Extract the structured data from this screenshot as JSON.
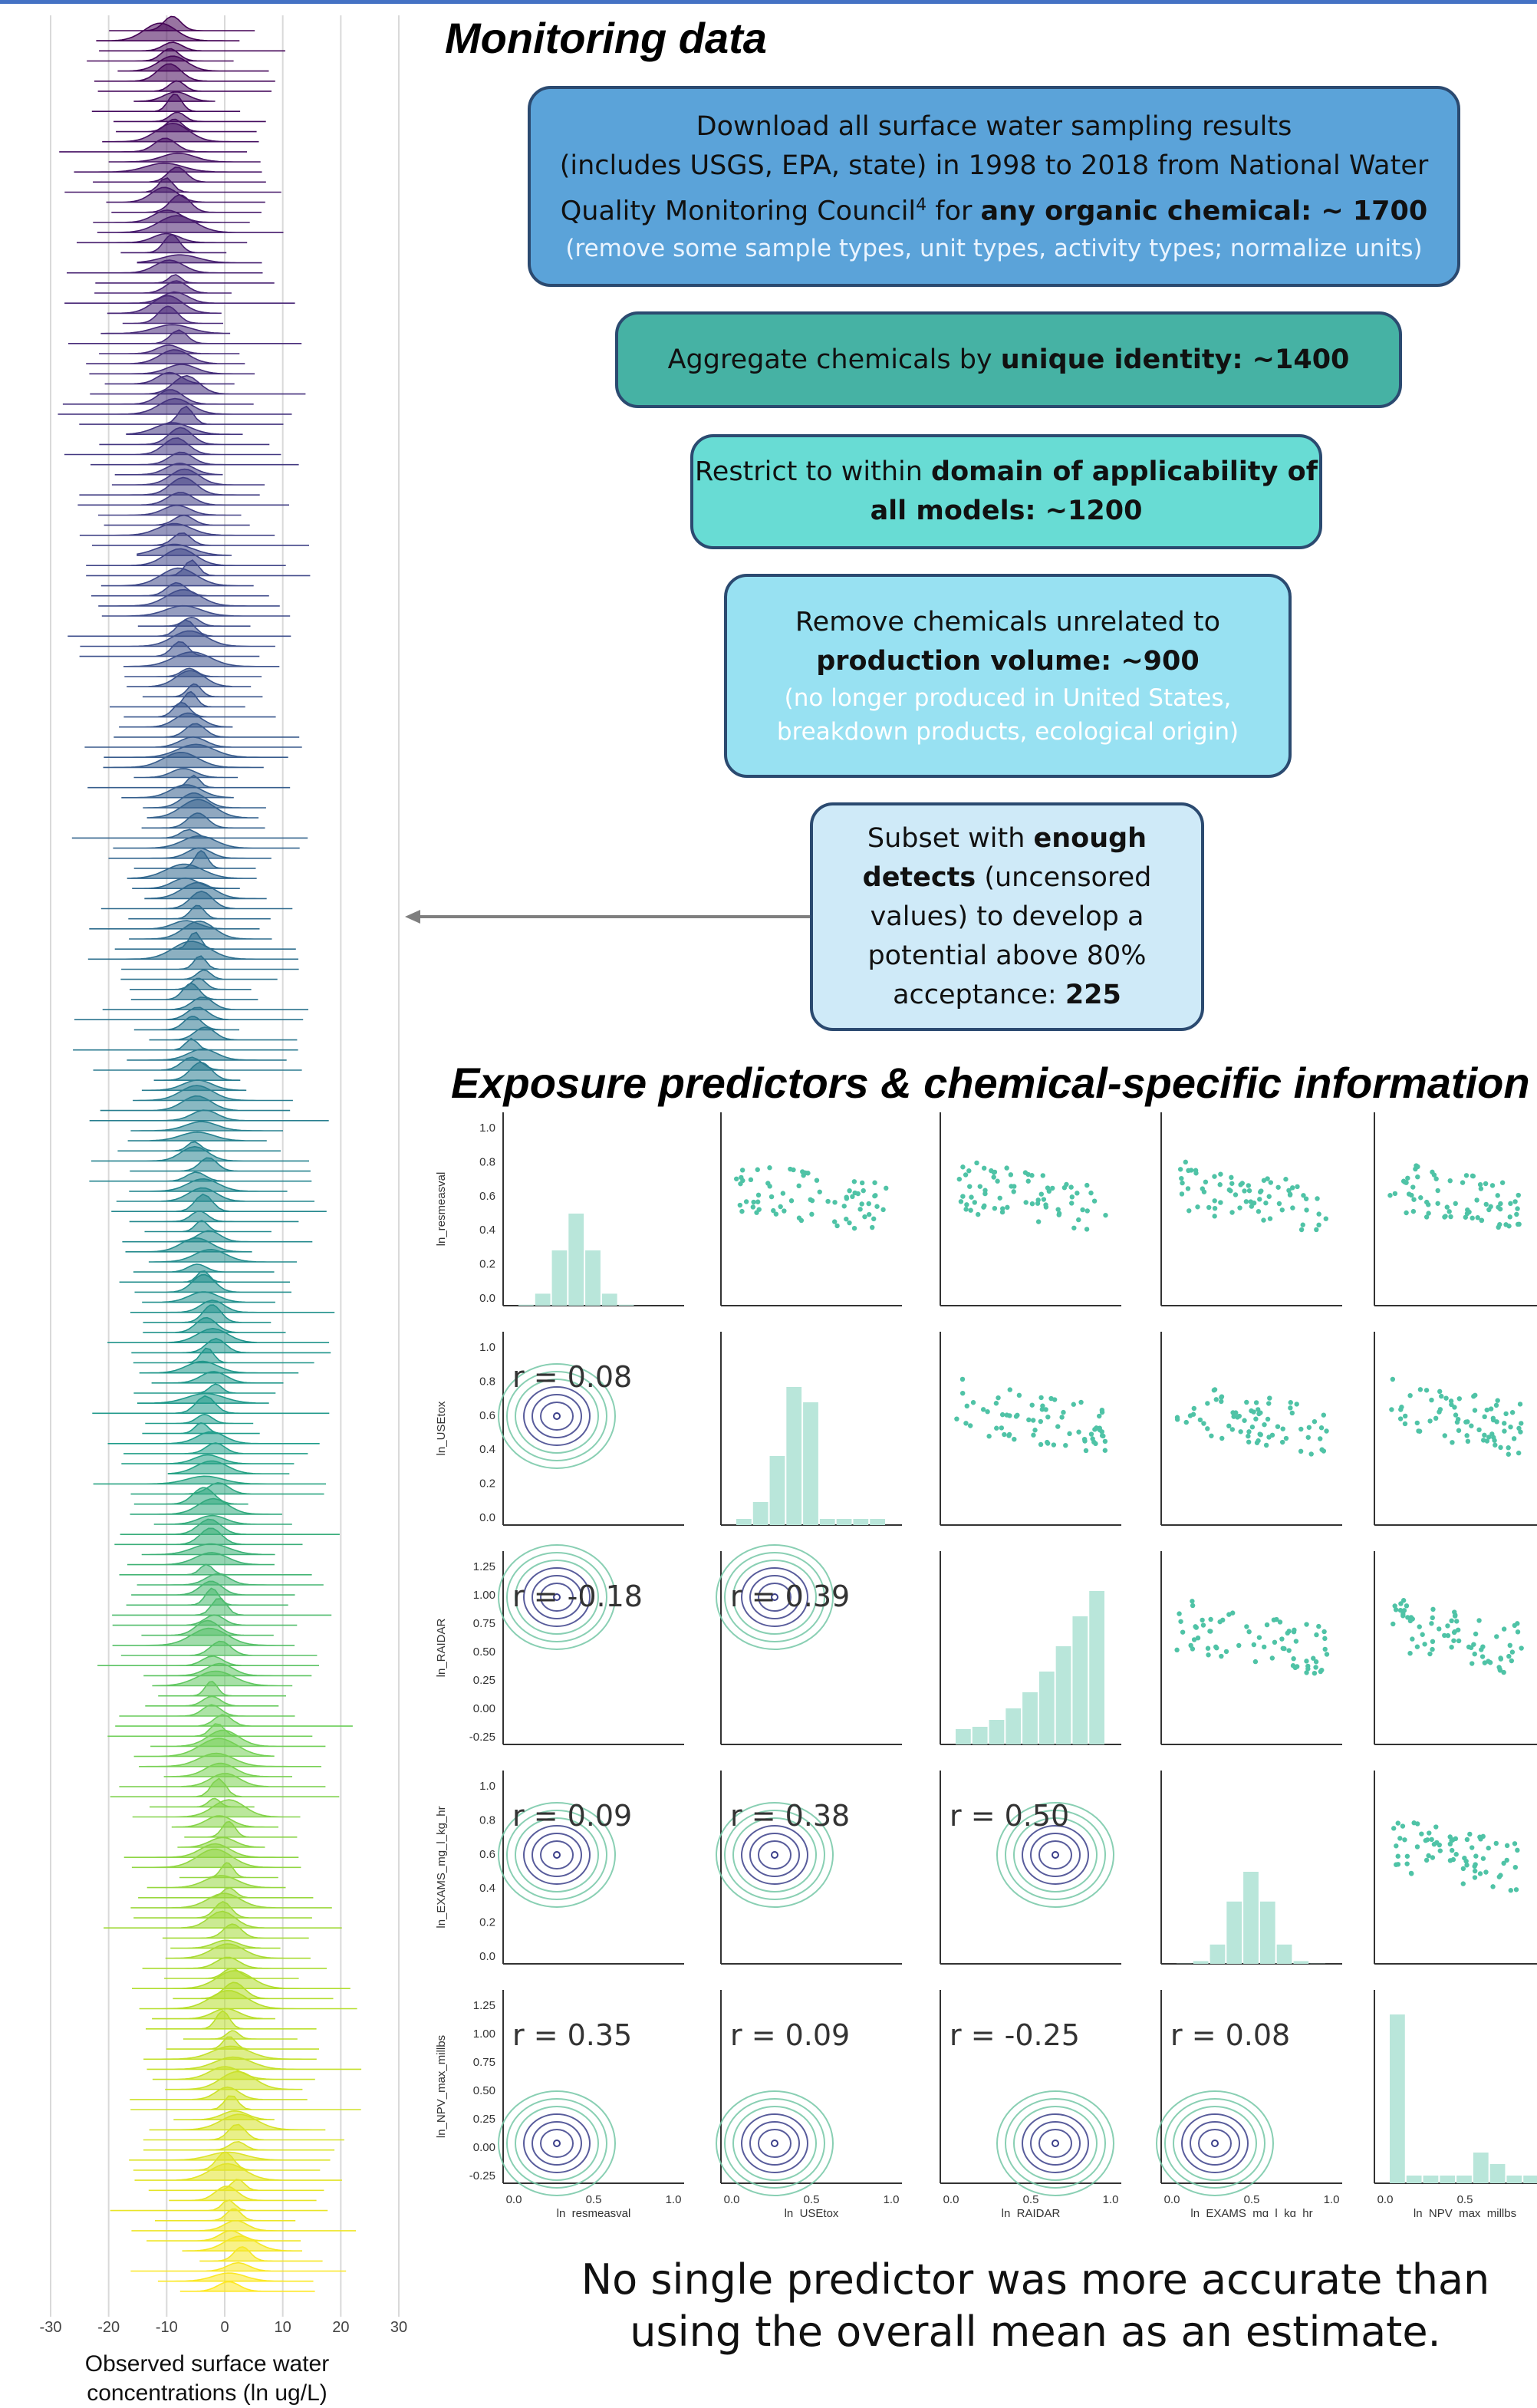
{
  "sections": {
    "monitoring_title": "Monitoring data",
    "predictors_title": "Exposure predictors & chemical-specific information"
  },
  "flowchart": {
    "box1": {
      "line1": "Download all surface water sampling results",
      "line2": "(includes USGS, EPA, state) in 1998 to 2018 from National Water",
      "line3_pre": "Quality Monitoring Council",
      "line3_sup": "4",
      "line3_mid": " for ",
      "line3_bold": "any organic chemical",
      "line3_post": ": ~ 1700",
      "sub": "(remove some sample types, unit types, activity types; normalize units)"
    },
    "box2": {
      "pre": "Aggregate chemicals by ",
      "bold": "unique identity",
      "post": ": ~1400"
    },
    "box3": {
      "pre": "Restrict to within ",
      "bold1": "domain of applicability of",
      "bold2": "all models",
      "post": ": ~1200"
    },
    "box4": {
      "line1": "Remove chemicals unrelated to",
      "bold": "production volume",
      "post": ": ~900",
      "sub1": "(no longer produced in United States,",
      "sub2": "breakdown products, ecological origin)"
    },
    "box5": {
      "pre": "Subset with ",
      "bold1": "enough",
      "bold2": "detects",
      "post2": " (uncensored",
      "line3": "values) to develop a",
      "line4": "potential above 80%",
      "line5_pre": "acceptance: ",
      "line5_bold": "225"
    }
  },
  "ridge": {
    "xlabel_line1": "Observed surface water",
    "xlabel_line2": "concentrations (ln ug/L)",
    "xticks": [
      -30,
      -20,
      -10,
      0,
      10,
      20,
      30
    ],
    "xlim": [
      -30,
      30
    ],
    "palette": "viridis (purple at top to yellow at bottom)"
  },
  "conclusion": {
    "line1": "No single predictor was more accurate than",
    "line2": "using the overall mean as an estimate."
  },
  "chart_data": {
    "type": "scatter",
    "variables": [
      "ln_resmeasval",
      "ln_USEtox",
      "ln_RAIDAR",
      "ln_EXAMS_mg_l_kg_hr",
      "ln_NPV_max_millbs"
    ],
    "diagonal": "histogram",
    "upper": "scatter",
    "lower": "kde contours",
    "correlations": [
      {
        "row": "ln_USEtox",
        "col": "ln_resmeasval",
        "r": "r = 0.08"
      },
      {
        "row": "ln_RAIDAR",
        "col": "ln_resmeasval",
        "r": "r = -0.18"
      },
      {
        "row": "ln_RAIDAR",
        "col": "ln_USEtox",
        "r": "r = 0.39"
      },
      {
        "row": "ln_EXAMS_mg_l_kg_hr",
        "col": "ln_resmeasval",
        "r": "r = 0.09"
      },
      {
        "row": "ln_EXAMS_mg_l_kg_hr",
        "col": "ln_USEtox",
        "r": "r = 0.38"
      },
      {
        "row": "ln_EXAMS_mg_l_kg_hr",
        "col": "ln_RAIDAR",
        "r": "r = 0.50"
      },
      {
        "row": "ln_NPV_max_millbs",
        "col": "ln_resmeasval",
        "r": "r = 0.35"
      },
      {
        "row": "ln_NPV_max_millbs",
        "col": "ln_USEtox",
        "r": "r = 0.09"
      },
      {
        "row": "ln_NPV_max_millbs",
        "col": "ln_RAIDAR",
        "r": "r = -0.25"
      },
      {
        "row": "ln_NPV_max_millbs",
        "col": "ln_EXAMS_mg_l_kg_hr",
        "r": "r = 0.08"
      }
    ],
    "row_ylim": [
      [
        0,
        1
      ],
      [
        0,
        1
      ],
      [
        -0.25,
        1.25
      ],
      [
        0,
        1
      ],
      [
        -0.25,
        1.25
      ]
    ],
    "row_yticks": [
      [
        "0.0",
        "0.2",
        "0.4",
        "0.6",
        "0.8",
        "1.0"
      ],
      [
        "0.0",
        "0.2",
        "0.4",
        "0.6",
        "0.8",
        "1.0"
      ],
      [
        "-0.25",
        "0.00",
        "0.25",
        "0.50",
        "0.75",
        "1.00",
        "1.25"
      ],
      [
        "0.0",
        "0.2",
        "0.4",
        "0.6",
        "0.8",
        "1.0"
      ],
      [
        "-0.25",
        "0.00",
        "0.25",
        "0.50",
        "0.75",
        "1.00",
        "1.25"
      ]
    ],
    "col_xticks": [
      [
        "0.0",
        "0.5",
        "1.0"
      ],
      [
        "0.0",
        "0.5",
        "1.0"
      ],
      [
        "0.0",
        "0.5",
        "1.0"
      ],
      [
        "0.0",
        "0.5",
        "1.0"
      ],
      [
        "0.0",
        "0.5"
      ]
    ],
    "xlim": [
      0,
      1
    ],
    "colors": {
      "points": "#4fc3a6",
      "hist": "#b9e6da",
      "contour_outer": "#74c7a6",
      "contour_inner": "#3b3f8a"
    }
  }
}
